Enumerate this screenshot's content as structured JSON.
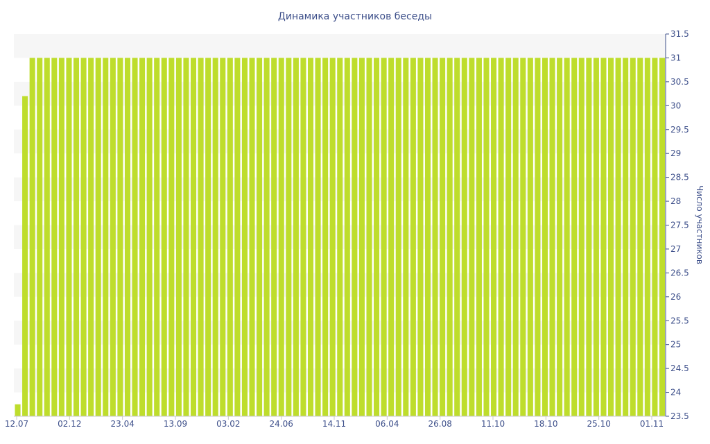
{
  "chart_data": {
    "type": "bar",
    "title": "Динамика участников беседы",
    "xlabel": "",
    "ylabel": "Число участников",
    "ylim": [
      23.5,
      31.5
    ],
    "y_ticks": [
      "23.5",
      "24",
      "24.5",
      "25",
      "25.5",
      "26",
      "26.5",
      "27",
      "27.5",
      "28",
      "28.5",
      "29",
      "29.5",
      "30",
      "30.5",
      "31",
      "31.5"
    ],
    "x_tick_labels": [
      "12.07",
      "02.12",
      "23.04",
      "13.09",
      "03.02",
      "24.06",
      "14.11",
      "06.04",
      "26.08",
      "11.10",
      "18.10",
      "25.10",
      "01.11"
    ],
    "bar_color": "#bedd2c",
    "band_color": "#f6f6f6",
    "grid": false,
    "first_values": [
      23.75,
      30.2
    ],
    "plateau_value": 31,
    "bar_count": 89
  }
}
